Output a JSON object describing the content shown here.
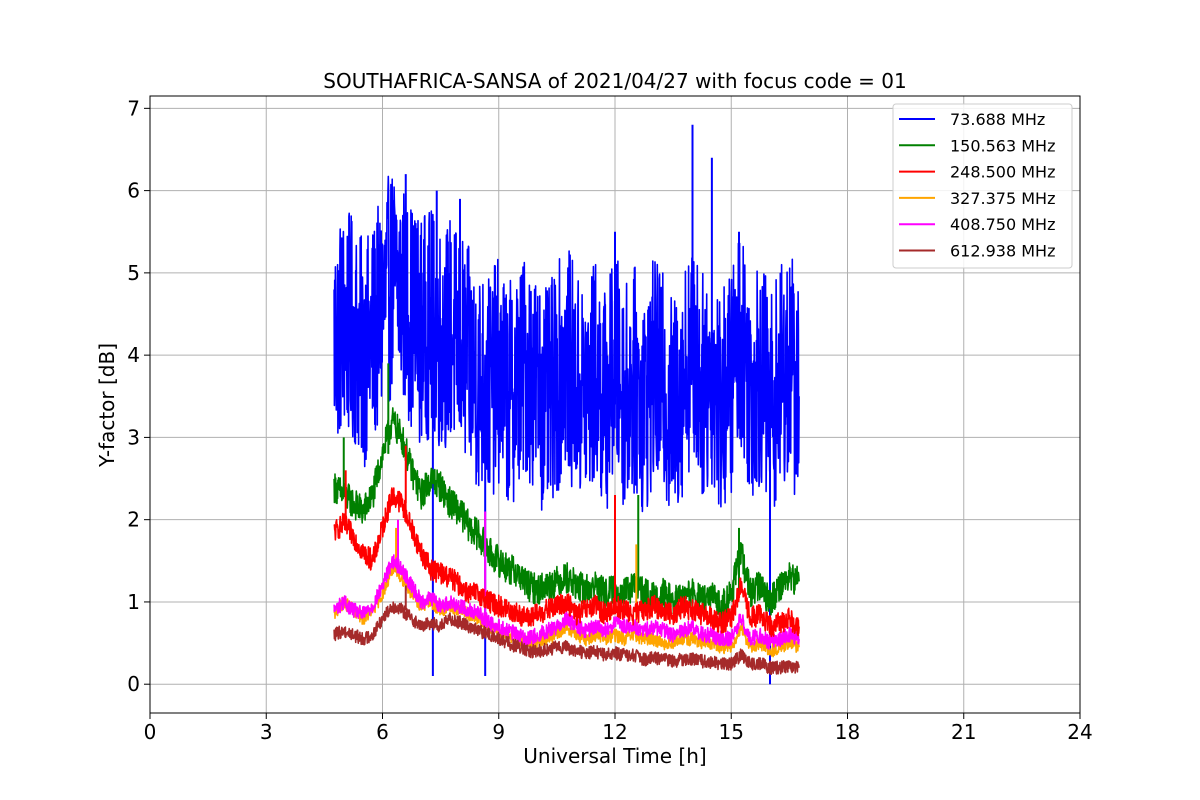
{
  "chart_data": {
    "type": "line",
    "title": "SOUTHAFRICA-SANSA of 2021/04/27 with focus code = 01",
    "xlabel": "Universal Time [h]",
    "ylabel": "Y-factor [dB]",
    "xlim": [
      0,
      24
    ],
    "ylim": [
      -0.35,
      7.15
    ],
    "xticks": [
      0,
      3,
      6,
      9,
      12,
      15,
      18,
      21,
      24
    ],
    "yticks": [
      0,
      1,
      2,
      3,
      4,
      5,
      6,
      7
    ],
    "grid": true,
    "legend_position": "top-right",
    "series": [
      {
        "name": " 73.688 MHz",
        "color": "#0000ff",
        "x": [
          4.75,
          5.0,
          5.25,
          5.5,
          5.75,
          6.0,
          6.25,
          6.5,
          6.75,
          7.0,
          7.25,
          7.5,
          7.75,
          8.0,
          8.25,
          8.5,
          8.75,
          9.0,
          9.25,
          9.5,
          9.75,
          10.0,
          10.25,
          10.5,
          10.75,
          11.0,
          11.25,
          11.5,
          11.75,
          12.0,
          12.25,
          12.5,
          12.75,
          13.0,
          13.25,
          13.5,
          13.75,
          14.0,
          14.25,
          14.5,
          14.75,
          15.0,
          15.25,
          15.5,
          15.75,
          16.0,
          16.25,
          16.5,
          16.75
        ],
        "y": [
          4.2,
          4.4,
          4.3,
          4.0,
          4.2,
          4.6,
          4.9,
          4.8,
          4.5,
          4.3,
          4.4,
          4.2,
          4.3,
          4.1,
          3.9,
          3.7,
          3.6,
          3.8,
          3.5,
          3.7,
          3.9,
          3.6,
          3.4,
          3.7,
          4.0,
          3.6,
          3.5,
          3.8,
          3.4,
          3.9,
          3.5,
          3.7,
          3.4,
          3.8,
          3.6,
          3.3,
          3.7,
          4.1,
          3.6,
          3.8,
          3.4,
          3.7,
          4.3,
          3.6,
          3.8,
          3.4,
          3.7,
          3.9,
          3.5
        ],
        "spikes": [
          [
            5.1,
            5.4
          ],
          [
            6.6,
            6.2
          ],
          [
            7.4,
            6.0
          ],
          [
            7.3,
            0.1
          ],
          [
            8.0,
            5.9
          ],
          [
            8.65,
            0.1
          ],
          [
            12.0,
            5.5
          ],
          [
            14.0,
            6.8
          ],
          [
            14.5,
            6.4
          ],
          [
            15.2,
            5.5
          ],
          [
            16.0,
            0.0
          ]
        ]
      },
      {
        "name": "150.563 MHz",
        "color": "#008000",
        "x": [
          4.75,
          5.0,
          5.25,
          5.5,
          5.75,
          6.0,
          6.25,
          6.5,
          6.75,
          7.0,
          7.25,
          7.5,
          7.75,
          8.0,
          8.25,
          8.5,
          8.75,
          9.0,
          9.25,
          9.5,
          9.75,
          10.0,
          10.25,
          10.5,
          10.75,
          11.0,
          11.25,
          11.5,
          11.75,
          12.0,
          12.25,
          12.5,
          12.75,
          13.0,
          13.25,
          13.5,
          13.75,
          14.0,
          14.25,
          14.5,
          14.75,
          15.0,
          15.25,
          15.5,
          15.75,
          16.0,
          16.25,
          16.5,
          16.75
        ],
        "y": [
          2.4,
          2.3,
          2.2,
          2.1,
          2.3,
          2.8,
          3.2,
          3.0,
          2.6,
          2.3,
          2.5,
          2.4,
          2.2,
          2.1,
          1.9,
          1.8,
          1.6,
          1.5,
          1.4,
          1.35,
          1.2,
          1.15,
          1.2,
          1.25,
          1.3,
          1.2,
          1.15,
          1.2,
          1.1,
          1.15,
          1.1,
          1.2,
          1.1,
          1.05,
          1.1,
          1.0,
          1.05,
          1.1,
          1.0,
          1.05,
          0.95,
          1.1,
          1.6,
          1.1,
          1.2,
          1.0,
          1.2,
          1.3,
          1.25
        ],
        "spikes": [
          [
            5.0,
            3.0
          ],
          [
            6.15,
            3.9
          ],
          [
            12.6,
            2.3
          ],
          [
            15.2,
            1.9
          ]
        ]
      },
      {
        "name": "248.500 MHz",
        "color": "#ff0000",
        "x": [
          4.75,
          5.0,
          5.25,
          5.5,
          5.75,
          6.0,
          6.25,
          6.5,
          6.75,
          7.0,
          7.25,
          7.5,
          7.75,
          8.0,
          8.25,
          8.5,
          8.75,
          9.0,
          9.25,
          9.5,
          9.75,
          10.0,
          10.25,
          10.5,
          10.75,
          11.0,
          11.25,
          11.5,
          11.75,
          12.0,
          12.25,
          12.5,
          12.75,
          13.0,
          13.25,
          13.5,
          13.75,
          14.0,
          14.25,
          14.5,
          14.75,
          15.0,
          15.25,
          15.5,
          15.75,
          16.0,
          16.25,
          16.5,
          16.75
        ],
        "y": [
          1.85,
          1.95,
          1.8,
          1.6,
          1.5,
          1.9,
          2.3,
          2.2,
          1.9,
          1.6,
          1.4,
          1.35,
          1.3,
          1.2,
          1.1,
          1.1,
          1.0,
          0.95,
          0.9,
          0.85,
          0.8,
          0.85,
          0.9,
          0.95,
          1.0,
          0.85,
          0.9,
          0.95,
          0.85,
          0.95,
          0.9,
          0.85,
          0.9,
          0.95,
          0.9,
          0.85,
          0.95,
          0.9,
          0.85,
          0.8,
          0.75,
          0.8,
          1.2,
          0.8,
          0.85,
          0.7,
          0.75,
          0.8,
          0.7
        ],
        "spikes": [
          [
            5.05,
            2.6
          ],
          [
            6.6,
            2.9
          ],
          [
            12.0,
            2.3
          ]
        ]
      },
      {
        "name": "327.375 MHz",
        "color": "#ffa500",
        "x": [
          4.75,
          5.0,
          5.25,
          5.5,
          5.75,
          6.0,
          6.25,
          6.5,
          6.75,
          7.0,
          7.25,
          7.5,
          7.75,
          8.0,
          8.25,
          8.5,
          8.75,
          9.0,
          9.25,
          9.5,
          9.75,
          10.0,
          10.25,
          10.5,
          10.75,
          11.0,
          11.25,
          11.5,
          11.75,
          12.0,
          12.25,
          12.5,
          12.75,
          13.0,
          13.25,
          13.5,
          13.75,
          14.0,
          14.25,
          14.5,
          14.75,
          15.0,
          15.25,
          15.5,
          15.75,
          16.0,
          16.25,
          16.5,
          16.75
        ],
        "y": [
          0.85,
          1.0,
          0.9,
          0.8,
          0.9,
          1.1,
          1.4,
          1.3,
          1.1,
          0.95,
          1.0,
          0.9,
          0.95,
          0.9,
          0.85,
          0.8,
          0.7,
          0.65,
          0.6,
          0.55,
          0.5,
          0.5,
          0.55,
          0.6,
          0.7,
          0.6,
          0.55,
          0.6,
          0.55,
          0.6,
          0.55,
          0.6,
          0.55,
          0.55,
          0.5,
          0.5,
          0.55,
          0.55,
          0.5,
          0.5,
          0.45,
          0.45,
          0.7,
          0.45,
          0.5,
          0.4,
          0.45,
          0.5,
          0.45
        ],
        "spikes": [
          [
            6.35,
            1.9
          ],
          [
            12.55,
            1.7
          ]
        ]
      },
      {
        "name": "408.750 MHz",
        "color": "#ff00ff",
        "x": [
          4.75,
          5.0,
          5.25,
          5.5,
          5.75,
          6.0,
          6.25,
          6.5,
          6.75,
          7.0,
          7.25,
          7.5,
          7.75,
          8.0,
          8.25,
          8.5,
          8.75,
          9.0,
          9.25,
          9.5,
          9.75,
          10.0,
          10.25,
          10.5,
          10.75,
          11.0,
          11.25,
          11.5,
          11.75,
          12.0,
          12.25,
          12.5,
          12.75,
          13.0,
          13.25,
          13.5,
          13.75,
          14.0,
          14.25,
          14.5,
          14.75,
          15.0,
          15.25,
          15.5,
          15.75,
          16.0,
          16.25,
          16.5,
          16.75
        ],
        "y": [
          0.9,
          1.0,
          0.9,
          0.85,
          0.95,
          1.2,
          1.5,
          1.4,
          1.2,
          1.0,
          1.05,
          0.95,
          1.0,
          0.95,
          0.9,
          0.85,
          0.75,
          0.7,
          0.65,
          0.6,
          0.55,
          0.6,
          0.65,
          0.7,
          0.8,
          0.7,
          0.65,
          0.7,
          0.65,
          0.75,
          0.7,
          0.7,
          0.65,
          0.7,
          0.65,
          0.6,
          0.65,
          0.7,
          0.6,
          0.6,
          0.55,
          0.55,
          0.8,
          0.55,
          0.6,
          0.5,
          0.55,
          0.6,
          0.55
        ],
        "spikes": [
          [
            6.4,
            2.0
          ],
          [
            8.65,
            2.1
          ]
        ]
      },
      {
        "name": "612.938 MHz",
        "color": "#a52a2a",
        "x": [
          4.75,
          5.0,
          5.25,
          5.5,
          5.75,
          6.0,
          6.25,
          6.5,
          6.75,
          7.0,
          7.25,
          7.5,
          7.75,
          8.0,
          8.25,
          8.5,
          8.75,
          9.0,
          9.25,
          9.5,
          9.75,
          10.0,
          10.25,
          10.5,
          10.75,
          11.0,
          11.25,
          11.5,
          11.75,
          12.0,
          12.25,
          12.5,
          12.75,
          13.0,
          13.25,
          13.5,
          13.75,
          14.0,
          14.25,
          14.5,
          14.75,
          15.0,
          15.25,
          15.5,
          15.75,
          16.0,
          16.25,
          16.5,
          16.75
        ],
        "y": [
          0.6,
          0.65,
          0.6,
          0.55,
          0.6,
          0.8,
          0.95,
          0.9,
          0.8,
          0.7,
          0.75,
          0.7,
          0.8,
          0.75,
          0.7,
          0.65,
          0.6,
          0.55,
          0.5,
          0.45,
          0.4,
          0.4,
          0.42,
          0.45,
          0.45,
          0.4,
          0.38,
          0.4,
          0.35,
          0.38,
          0.35,
          0.35,
          0.3,
          0.32,
          0.3,
          0.28,
          0.3,
          0.3,
          0.28,
          0.27,
          0.25,
          0.25,
          0.35,
          0.25,
          0.25,
          0.2,
          0.2,
          0.22,
          0.2
        ],
        "spikes": [
          [
            6.6,
            1.2
          ]
        ]
      }
    ]
  }
}
